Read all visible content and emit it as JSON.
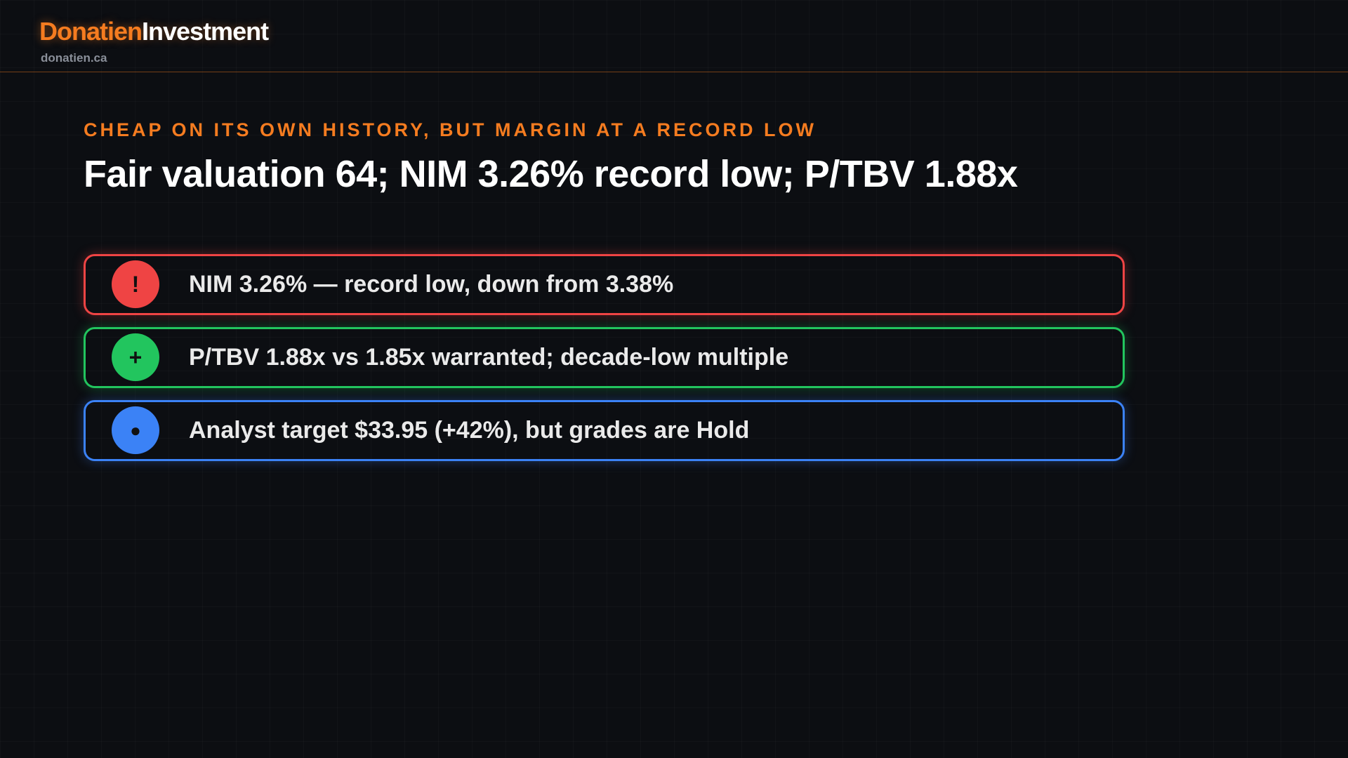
{
  "header": {
    "brand_first": "Donatien",
    "brand_second": "Investment",
    "site": "donatien.ca"
  },
  "slide": {
    "kicker": "CHEAP ON ITS OWN HISTORY, BUT MARGIN AT A RECORD LOW",
    "title": "Fair valuation 64; NIM 3.26% record low; P/TBV 1.88x",
    "items": [
      {
        "icon": "!",
        "text": "NIM 3.26% — record low, down from 3.38%"
      },
      {
        "icon": "+",
        "text": "P/TBV 1.88x vs 1.85x warranted; decade-low multiple"
      },
      {
        "icon": "●",
        "text": "Analyst target $33.95 (+42%), but grades are Hold"
      }
    ]
  }
}
